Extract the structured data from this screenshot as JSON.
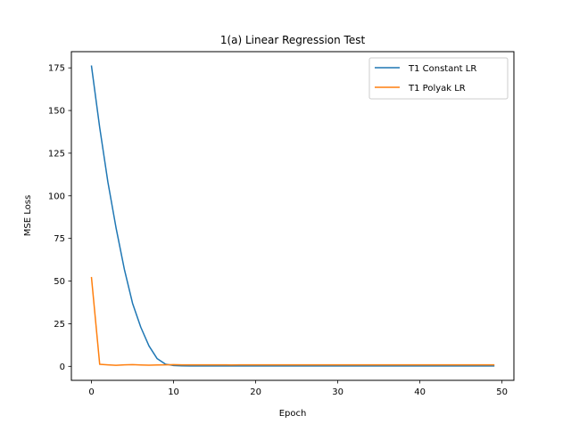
{
  "chart_data": {
    "type": "line",
    "title": "1(a) Linear Regression Test",
    "xlabel": "Epoch",
    "ylabel": "MSE Loss",
    "xlim": [
      -2.45,
      51.45
    ],
    "ylim": [
      -8.2,
      184.5
    ],
    "xticks": [
      0,
      10,
      20,
      30,
      40,
      50
    ],
    "yticks": [
      0,
      25,
      50,
      75,
      100,
      125,
      150,
      175
    ],
    "grid": false,
    "legend_position": "top-right",
    "x": [
      0,
      1,
      2,
      3,
      4,
      5,
      6,
      7,
      8,
      9,
      10,
      11,
      12,
      13,
      14,
      15,
      16,
      17,
      18,
      19,
      20,
      21,
      22,
      23,
      24,
      25,
      26,
      27,
      28,
      29,
      30,
      31,
      32,
      33,
      34,
      35,
      36,
      37,
      38,
      39,
      40,
      41,
      42,
      43,
      44,
      45,
      46,
      47,
      48,
      49
    ],
    "series": [
      {
        "name": "T1 Constant LR",
        "color": "#1f77b4",
        "values": [
          176,
          140,
          108,
          81,
          57,
          37,
          23,
          12,
          4.5,
          1.3,
          0.5,
          0.3,
          0.2,
          0.2,
          0.2,
          0.2,
          0.2,
          0.2,
          0.2,
          0.2,
          0.2,
          0.2,
          0.2,
          0.2,
          0.2,
          0.2,
          0.2,
          0.2,
          0.2,
          0.2,
          0.2,
          0.2,
          0.2,
          0.2,
          0.2,
          0.2,
          0.2,
          0.2,
          0.2,
          0.2,
          0.2,
          0.2,
          0.2,
          0.2,
          0.2,
          0.2,
          0.2,
          0.2,
          0.2,
          0.2
        ]
      },
      {
        "name": "T1 Polyak LR",
        "color": "#ff7f0e",
        "values": [
          52,
          1.2,
          0.9,
          0.6,
          0.9,
          1.0,
          0.8,
          0.7,
          0.8,
          0.9,
          1.0,
          0.9,
          0.9,
          0.9,
          0.9,
          0.9,
          0.9,
          0.8,
          0.9,
          0.9,
          0.9,
          0.9,
          0.9,
          0.9,
          0.9,
          0.9,
          0.9,
          0.9,
          0.9,
          0.9,
          0.9,
          0.9,
          0.9,
          0.9,
          0.9,
          0.9,
          0.9,
          0.9,
          0.9,
          0.9,
          0.9,
          0.9,
          0.9,
          0.9,
          0.9,
          0.9,
          0.9,
          0.9,
          0.9,
          0.9
        ]
      }
    ]
  }
}
